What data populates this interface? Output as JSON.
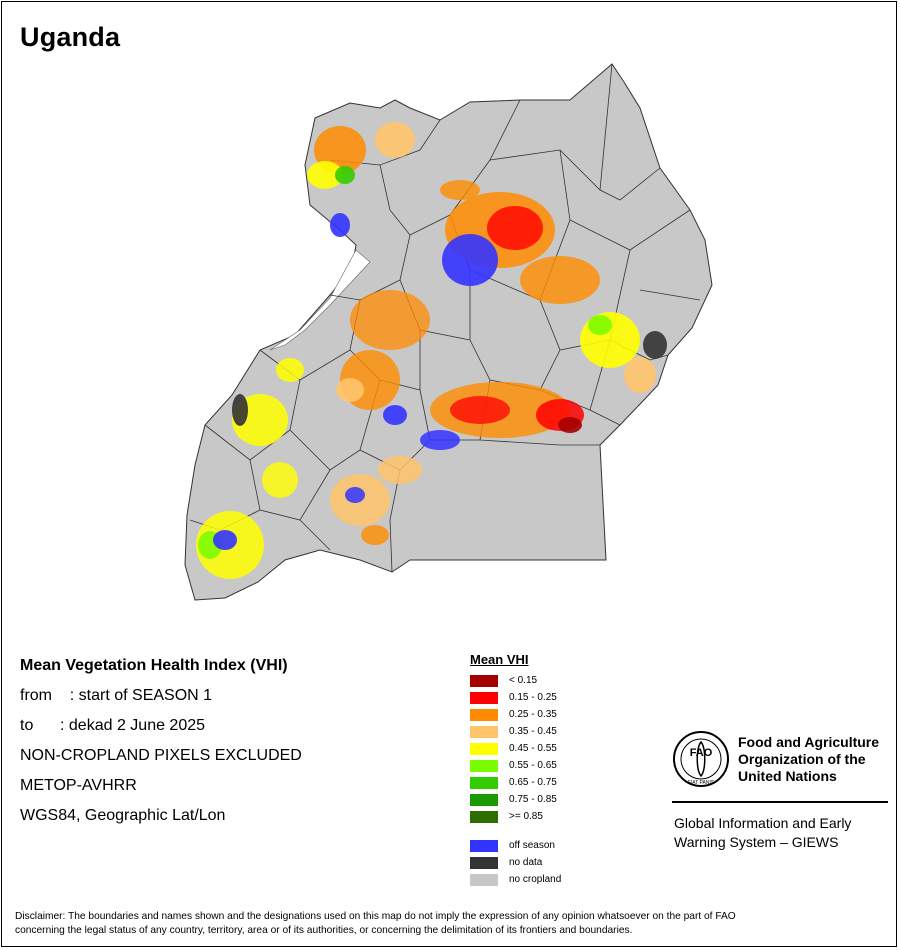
{
  "title": "Uganda",
  "info": {
    "heading": "Mean Vegetation Health Index (VHI)",
    "from": "from    : start of SEASON 1",
    "to": "to      : dekad 2 June 2025",
    "exclusion": "NON-CROPLAND PIXELS EXCLUDED",
    "sensor": "METOP-AVHRR",
    "projection": "WGS84, Geographic Lat/Lon"
  },
  "legend": {
    "title": "Mean VHI",
    "classes": [
      {
        "label": "< 0.15",
        "color": "#a50000"
      },
      {
        "label": "0.15 - 0.25",
        "color": "#ff0000"
      },
      {
        "label": "0.25 - 0.35",
        "color": "#ff8c00"
      },
      {
        "label": "0.35 - 0.45",
        "color": "#ffc46a"
      },
      {
        "label": "0.45 - 0.55",
        "color": "#ffff00"
      },
      {
        "label": "0.55 - 0.65",
        "color": "#7cfc00"
      },
      {
        "label": "0.65 - 0.75",
        "color": "#33cc00"
      },
      {
        "label": "0.75 - 0.85",
        "color": "#1a9900"
      },
      {
        "label": ">= 0.85",
        "color": "#2d6e00"
      }
    ],
    "other": [
      {
        "label": "off season",
        "color": "#3333ff"
      },
      {
        "label": "no data",
        "color": "#333333"
      },
      {
        "label": "no cropland",
        "color": "#c8c8c8"
      }
    ]
  },
  "fao": {
    "line1": "Food and Agriculture",
    "line2": "Organization of the",
    "line3": "United Nations",
    "logo_letters": "FAO",
    "logo_motto": "FIAT PANIS"
  },
  "giews": {
    "line1": "Global Information and Early",
    "line2": "Warning System – GIEWS"
  },
  "disclaimer": {
    "line1": "Disclaimer: The boundaries and names shown and the designations used on this map do not imply the expression of any opinion whatsoever on the part of FAO",
    "line2": "concerning the legal status of any country, territory, area or of its authorities, or concerning the delimitation of its frontiers and boundaries."
  },
  "map": {
    "land_color": "#c8c8c8",
    "lake_color": "#ffffff",
    "border_color": "#333333"
  }
}
